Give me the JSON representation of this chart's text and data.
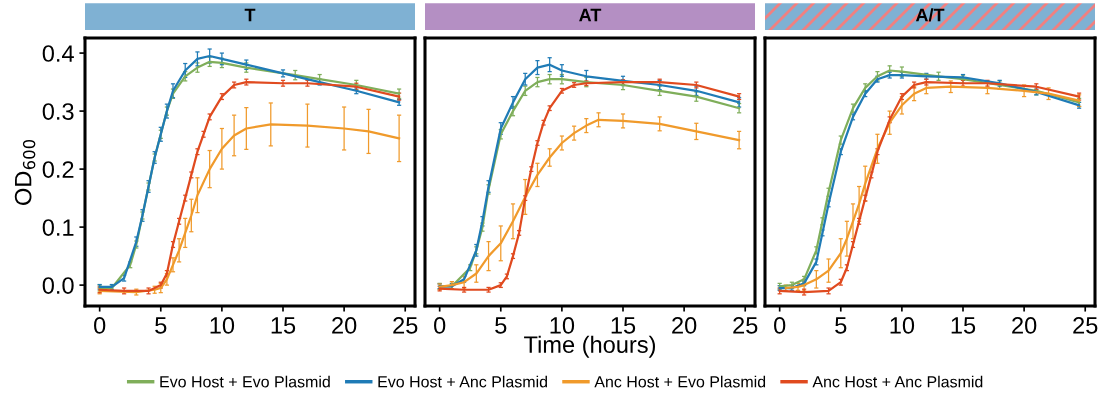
{
  "chart_data": [
    {
      "type": "line",
      "title": "T",
      "ylabel": "OD$_{600}$",
      "xlim": [
        -1.2,
        25.8
      ],
      "ylim": [
        -0.036,
        0.426
      ],
      "xticks": [
        0,
        5,
        10,
        15,
        20,
        25
      ],
      "yticks": [
        {
          "value": 0,
          "label": "0.0"
        },
        0.1,
        0.2,
        0.3,
        0.4
      ],
      "grid": false,
      "legend": "bottom",
      "marker": "none",
      "line_style": "solid",
      "series": [
        {
          "name": "Evo Host + Evo Plasmid",
          "color": "#7fae5a",
          "x": [
            0,
            1,
            2.5,
            3,
            3.5,
            4,
            4.5,
            5,
            5.5,
            6,
            7,
            8,
            9,
            10,
            12,
            16,
            18,
            21,
            24.5
          ],
          "values": [
            -0.005,
            -0.005,
            0.035,
            0.07,
            0.12,
            0.17,
            0.22,
            0.26,
            0.3,
            0.33,
            0.36,
            0.375,
            0.385,
            0.383,
            0.375,
            0.362,
            0.355,
            0.345,
            0.33
          ],
          "errors": [
            0.005,
            0.005,
            0.005,
            0.006,
            0.006,
            0.006,
            0.006,
            0.007,
            0.007,
            0.008,
            0.008,
            0.008,
            0.008,
            0.008,
            0.008,
            0.008,
            0.008,
            0.008,
            0.008
          ]
        },
        {
          "name": "Evo Host + Anc Plasmid",
          "color": "#1f7bb6",
          "x": [
            0,
            1,
            2,
            3,
            3.5,
            4,
            4.5,
            5,
            5.5,
            6,
            7,
            8,
            9,
            10,
            12,
            15,
            18,
            21,
            24.5
          ],
          "values": [
            -0.003,
            -0.003,
            0.012,
            0.075,
            0.12,
            0.17,
            0.22,
            0.26,
            0.3,
            0.335,
            0.37,
            0.39,
            0.395,
            0.39,
            0.38,
            0.365,
            0.35,
            0.335,
            0.315
          ],
          "errors": [
            0.004,
            0.004,
            0.005,
            0.008,
            0.01,
            0.01,
            0.01,
            0.012,
            0.012,
            0.012,
            0.012,
            0.012,
            0.012,
            0.01,
            0.008,
            0.006,
            0.005,
            0.005,
            0.005
          ]
        },
        {
          "name": "Anc Host + Evo Plasmid",
          "color": "#f09a2b",
          "x": [
            0,
            3,
            4.5,
            5,
            5.5,
            6,
            6.5,
            7,
            7.5,
            8,
            9,
            10,
            11,
            12,
            14,
            17,
            20,
            22,
            24.5
          ],
          "values": [
            -0.01,
            -0.012,
            -0.008,
            -0.005,
            0.01,
            0.035,
            0.06,
            0.09,
            0.12,
            0.155,
            0.2,
            0.235,
            0.258,
            0.27,
            0.277,
            0.275,
            0.27,
            0.265,
            0.253
          ],
          "errors": [
            0.005,
            0.005,
            0.006,
            0.008,
            0.01,
            0.012,
            0.02,
            0.025,
            0.028,
            0.03,
            0.032,
            0.035,
            0.035,
            0.036,
            0.037,
            0.037,
            0.037,
            0.038,
            0.04
          ]
        },
        {
          "name": "Anc Host + Anc Plasmid",
          "color": "#e04a1f",
          "x": [
            0,
            2,
            4,
            5,
            5.5,
            6,
            6.5,
            7,
            7.5,
            8,
            8.5,
            9,
            10,
            11,
            12,
            15,
            17,
            21,
            24.5
          ],
          "values": [
            -0.008,
            -0.01,
            -0.01,
            0.0,
            0.02,
            0.07,
            0.11,
            0.15,
            0.19,
            0.23,
            0.26,
            0.29,
            0.325,
            0.345,
            0.35,
            0.348,
            0.348,
            0.342,
            0.325
          ],
          "errors": [
            0.005,
            0.005,
            0.005,
            0.005,
            0.005,
            0.005,
            0.005,
            0.005,
            0.005,
            0.005,
            0.005,
            0.005,
            0.005,
            0.005,
            0.005,
            0.005,
            0.005,
            0.006,
            0.006
          ]
        }
      ]
    },
    {
      "type": "line",
      "title": "AT",
      "xlabel": "Time (hours)",
      "xlim": [
        -1.2,
        25.8
      ],
      "ylim": [
        -0.036,
        0.426
      ],
      "xticks": [
        0,
        5,
        10,
        15,
        20,
        25
      ],
      "tick_labels": "x",
      "grid": false,
      "legend": false,
      "marker": "none",
      "line_style": "solid",
      "series": [
        {
          "color": "#7fae5a",
          "x": [
            0,
            1,
            2.5,
            3,
            3.5,
            4,
            5,
            6,
            7,
            8,
            9,
            10,
            12,
            15,
            18,
            21,
            24.5
          ],
          "values": [
            -0.002,
            -0.002,
            0.03,
            0.06,
            0.1,
            0.165,
            0.26,
            0.3,
            0.335,
            0.35,
            0.355,
            0.355,
            0.35,
            0.345,
            0.335,
            0.325,
            0.305
          ],
          "errors": [
            0.005,
            0.005,
            0.005,
            0.006,
            0.007,
            0.008,
            0.008,
            0.008,
            0.008,
            0.008,
            0.008,
            0.008,
            0.008,
            0.008,
            0.008,
            0.008,
            0.008
          ]
        },
        {
          "color": "#1f7bb6",
          "x": [
            0,
            1,
            2,
            3,
            3.5,
            4,
            5,
            6,
            7,
            8,
            9,
            10,
            12,
            15,
            18,
            21,
            24.5
          ],
          "values": [
            -0.002,
            -0.002,
            0.01,
            0.06,
            0.11,
            0.17,
            0.27,
            0.315,
            0.355,
            0.375,
            0.38,
            0.37,
            0.36,
            0.352,
            0.345,
            0.335,
            0.315
          ],
          "errors": [
            0.004,
            0.004,
            0.005,
            0.01,
            0.008,
            0.01,
            0.01,
            0.01,
            0.01,
            0.012,
            0.012,
            0.01,
            0.01,
            0.008,
            0.008,
            0.008,
            0.008
          ]
        },
        {
          "color": "#f09a2b",
          "x": [
            0,
            1,
            2,
            3,
            4,
            5,
            6,
            7,
            8,
            9,
            10,
            11,
            12,
            13,
            15,
            18,
            21,
            24.5
          ],
          "values": [
            -0.003,
            0.0,
            0.005,
            0.02,
            0.05,
            0.072,
            0.11,
            0.152,
            0.19,
            0.22,
            0.245,
            0.262,
            0.275,
            0.285,
            0.283,
            0.278,
            0.265,
            0.25
          ],
          "errors": [
            0.005,
            0.006,
            0.01,
            0.015,
            0.025,
            0.03,
            0.03,
            0.03,
            0.02,
            0.015,
            0.012,
            0.012,
            0.012,
            0.012,
            0.012,
            0.012,
            0.014,
            0.015
          ]
        },
        {
          "color": "#e04a1f",
          "x": [
            0,
            2,
            4,
            5,
            5.5,
            6,
            6.5,
            7,
            7.5,
            8,
            8.5,
            9,
            10,
            11,
            12,
            15,
            18,
            21,
            24.5
          ],
          "values": [
            -0.006,
            -0.008,
            -0.008,
            0.0,
            0.015,
            0.05,
            0.09,
            0.15,
            0.2,
            0.245,
            0.28,
            0.305,
            0.335,
            0.345,
            0.348,
            0.35,
            0.35,
            0.345,
            0.325
          ],
          "errors": [
            0.004,
            0.004,
            0.004,
            0.004,
            0.004,
            0.004,
            0.004,
            0.004,
            0.004,
            0.004,
            0.004,
            0.004,
            0.004,
            0.004,
            0.004,
            0.004,
            0.005,
            0.005,
            0.005
          ]
        }
      ]
    },
    {
      "type": "line",
      "title": "A/T",
      "xlim": [
        -1.2,
        25.8
      ],
      "ylim": [
        -0.036,
        0.426
      ],
      "xticks": [
        0,
        5,
        10,
        15,
        20,
        25
      ],
      "tick_labels": "x",
      "grid": false,
      "legend": false,
      "marker": "none",
      "line_style": "solid",
      "series": [
        {
          "color": "#7fae5a",
          "x": [
            0,
            1,
            2,
            3,
            3.5,
            4,
            5,
            6,
            7,
            8,
            9,
            10,
            13,
            15,
            18,
            21,
            24.5
          ],
          "values": [
            -0.002,
            0.0,
            0.01,
            0.06,
            0.11,
            0.16,
            0.25,
            0.305,
            0.34,
            0.36,
            0.37,
            0.368,
            0.36,
            0.355,
            0.345,
            0.335,
            0.315
          ],
          "errors": [
            0.005,
            0.005,
            0.005,
            0.006,
            0.006,
            0.007,
            0.007,
            0.007,
            0.007,
            0.008,
            0.008,
            0.008,
            0.007,
            0.007,
            0.007,
            0.007,
            0.007
          ]
        },
        {
          "color": "#1f7bb6",
          "x": [
            0,
            1,
            2,
            3,
            3.5,
            4,
            5,
            6,
            7,
            8,
            9,
            10,
            12,
            15,
            18,
            21,
            24.5
          ],
          "values": [
            -0.005,
            -0.005,
            0.003,
            0.04,
            0.09,
            0.14,
            0.23,
            0.29,
            0.33,
            0.355,
            0.362,
            0.362,
            0.36,
            0.358,
            0.348,
            0.333,
            0.31
          ],
          "errors": [
            0.004,
            0.004,
            0.004,
            0.005,
            0.005,
            0.005,
            0.005,
            0.005,
            0.005,
            0.005,
            0.005,
            0.005,
            0.005,
            0.005,
            0.005,
            0.005,
            0.005
          ]
        },
        {
          "color": "#f09a2b",
          "x": [
            0.5,
            1.5,
            2,
            3,
            4,
            5,
            5.5,
            6,
            6.5,
            7,
            8,
            9,
            10,
            11,
            12,
            14,
            17,
            20,
            22,
            24.5
          ],
          "values": [
            -0.005,
            -0.003,
            0.0,
            0.01,
            0.025,
            0.055,
            0.08,
            0.11,
            0.14,
            0.175,
            0.235,
            0.28,
            0.31,
            0.33,
            0.34,
            0.342,
            0.34,
            0.335,
            0.33,
            0.318
          ],
          "errors": [
            0.005,
            0.006,
            0.01,
            0.015,
            0.02,
            0.025,
            0.03,
            0.03,
            0.03,
            0.03,
            0.025,
            0.02,
            0.015,
            0.012,
            0.01,
            0.01,
            0.01,
            0.01,
            0.01,
            0.01
          ]
        },
        {
          "color": "#e04a1f",
          "x": [
            0,
            2,
            4,
            5,
            5.5,
            6,
            6.5,
            7,
            7.5,
            8,
            9,
            10,
            11,
            12,
            15,
            17,
            21,
            24.5
          ],
          "values": [
            -0.01,
            -0.012,
            -0.01,
            0.005,
            0.03,
            0.07,
            0.11,
            0.15,
            0.19,
            0.23,
            0.285,
            0.325,
            0.345,
            0.35,
            0.348,
            0.348,
            0.342,
            0.325
          ],
          "errors": [
            0.005,
            0.005,
            0.005,
            0.005,
            0.005,
            0.005,
            0.005,
            0.005,
            0.005,
            0.005,
            0.005,
            0.005,
            0.005,
            0.005,
            0.005,
            0.005,
            0.005,
            0.006
          ]
        }
      ]
    }
  ]
}
